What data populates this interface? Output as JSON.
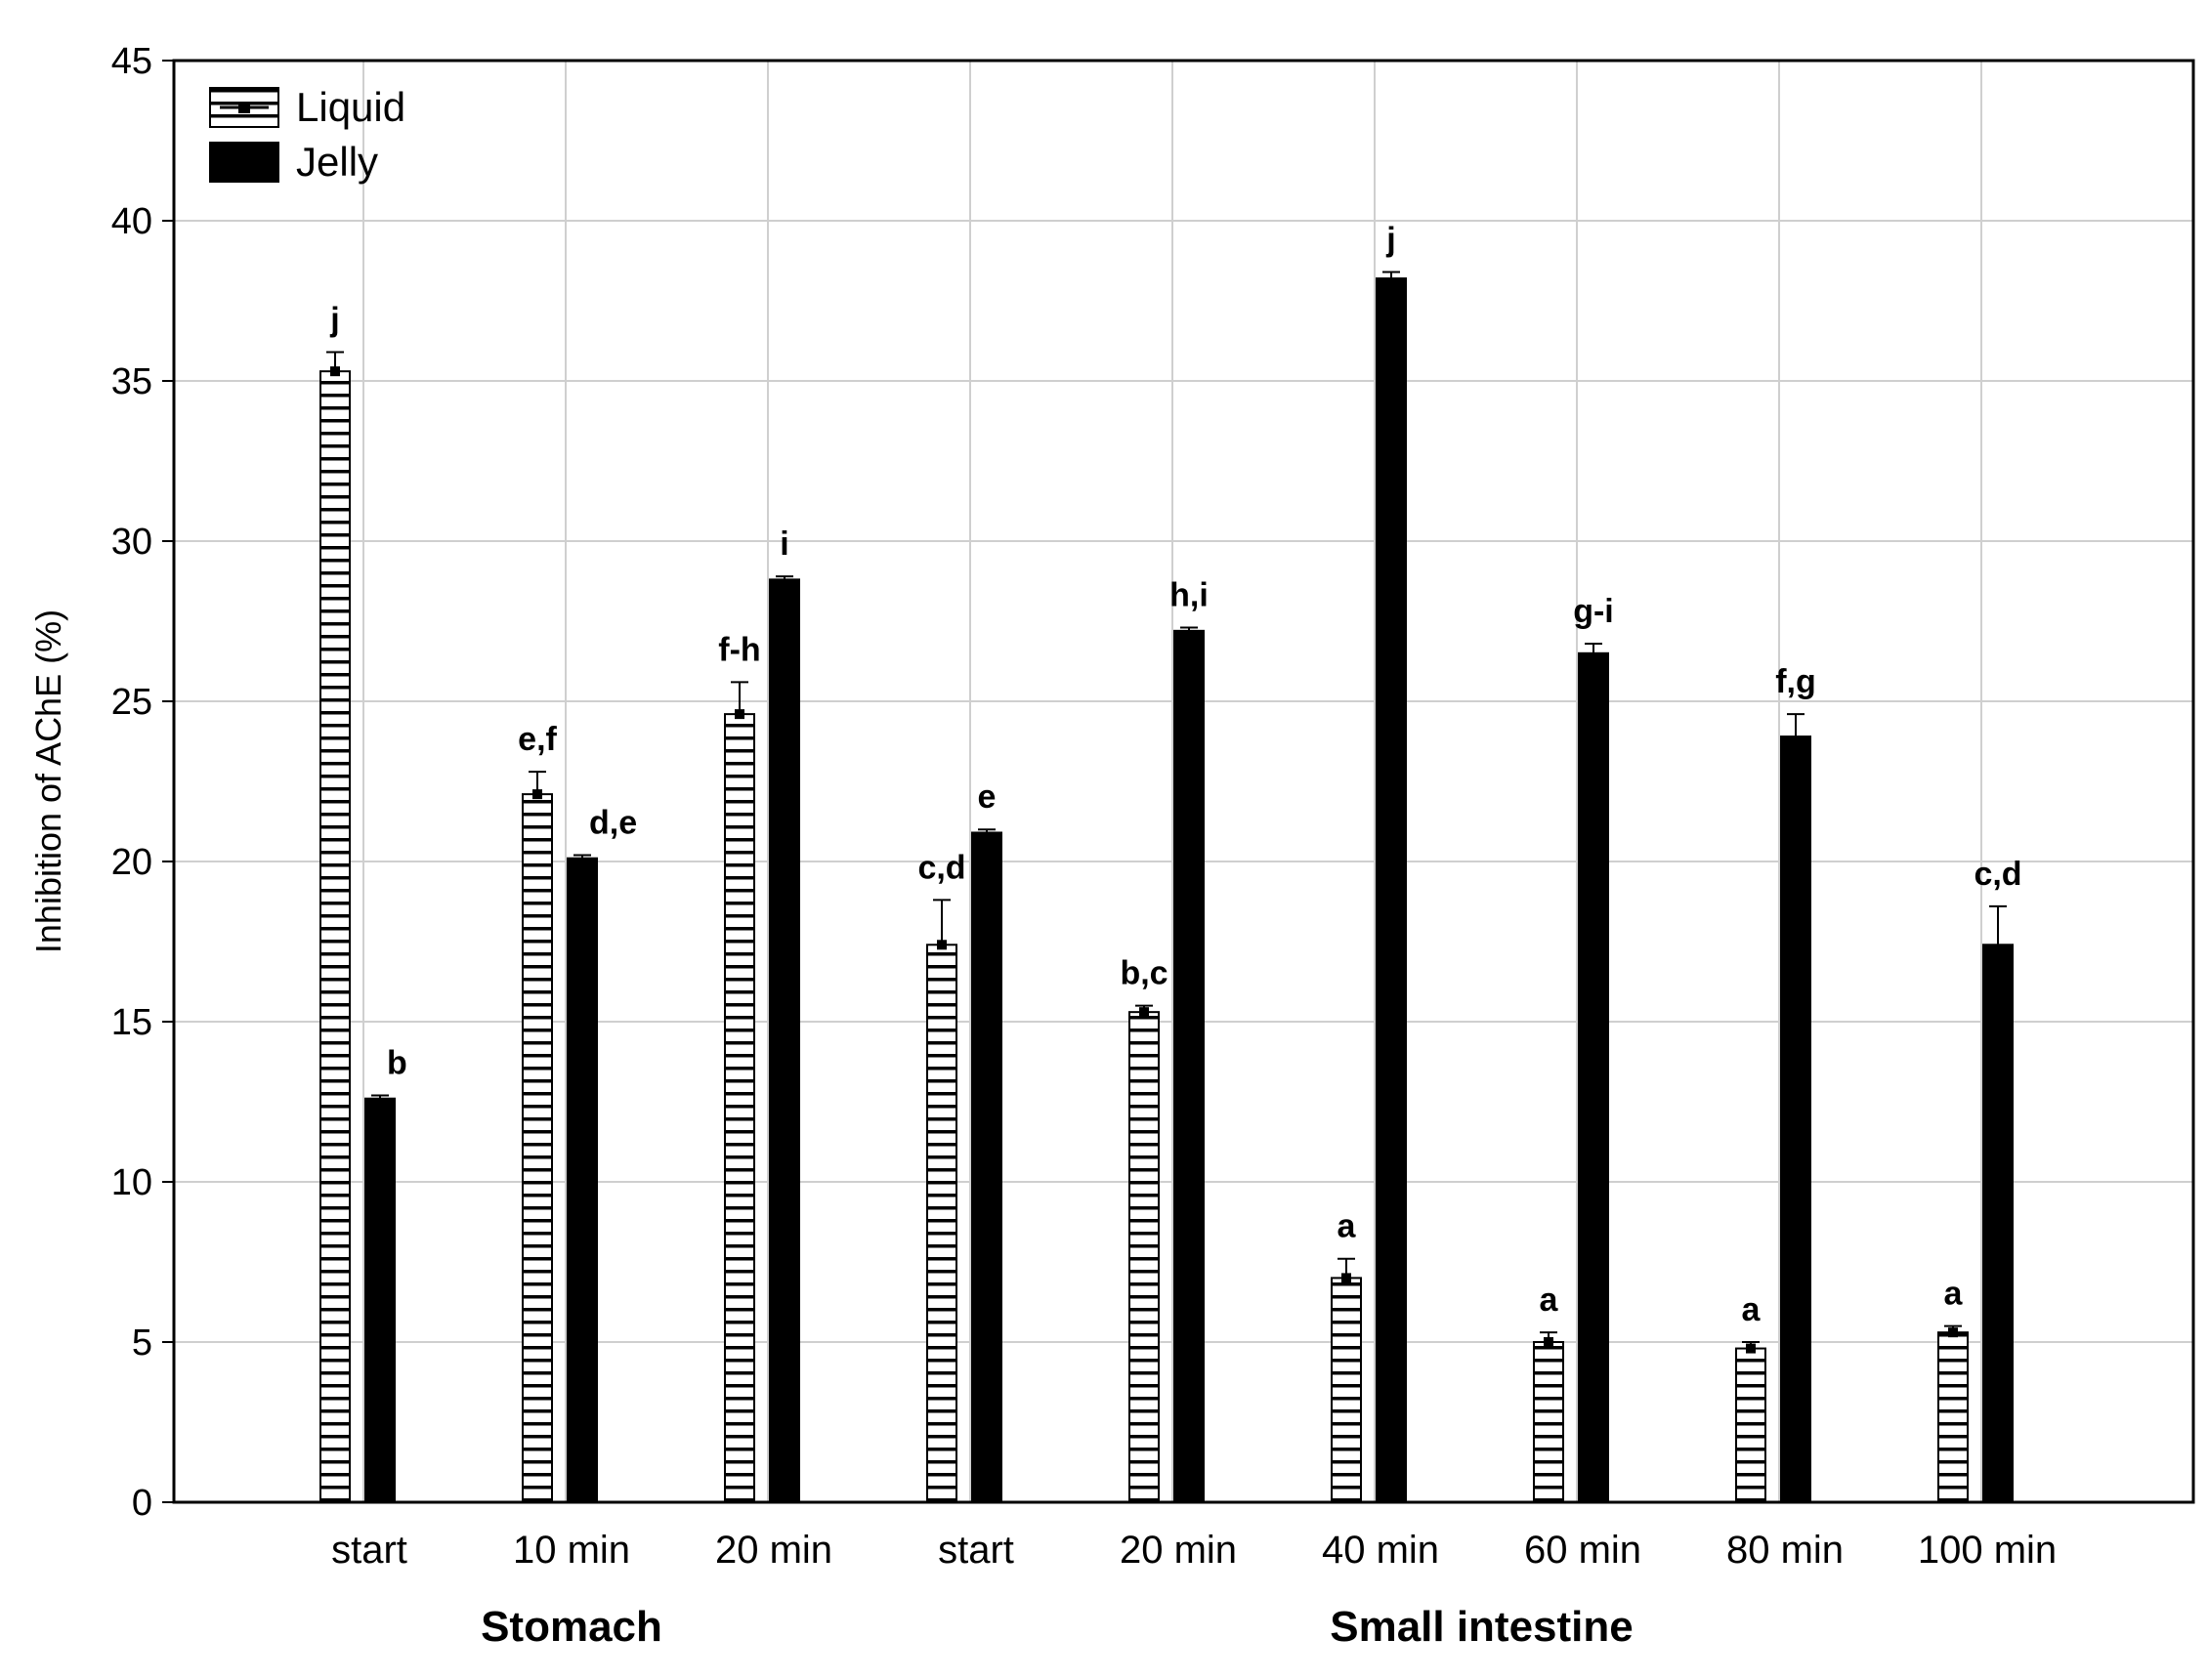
{
  "chart_data": {
    "type": "bar",
    "ylabel": "Inhibition of AChE (%)",
    "xlabel": "",
    "ylim": [
      0,
      45
    ],
    "yticks": [
      0,
      5,
      10,
      15,
      20,
      25,
      30,
      35,
      40,
      45
    ],
    "grid": true,
    "legend_position": "top-left",
    "categories": [
      "start",
      "10 min",
      "20 min",
      "start",
      "20 min",
      "40 min",
      "60 min",
      "80 min",
      "100 min"
    ],
    "groups": [
      {
        "label": "Stomach",
        "categories": [
          0,
          1,
          2
        ]
      },
      {
        "label": "Small intestine",
        "categories": [
          3,
          4,
          5,
          6,
          7,
          8
        ]
      }
    ],
    "series": [
      {
        "name": "Liquid",
        "pattern": "horizontal-stripes",
        "color": "#ffffff",
        "values": [
          35.3,
          22.1,
          24.6,
          17.4,
          15.3,
          7.0,
          5.0,
          4.8,
          5.3
        ],
        "errors": [
          0.6,
          0.7,
          1.0,
          1.4,
          0.2,
          0.6,
          0.3,
          0.2,
          0.2
        ],
        "labels": [
          "j",
          "e,f",
          "f-h",
          "c,d",
          "b,c",
          "a",
          "a",
          "a",
          "a"
        ]
      },
      {
        "name": "Jelly",
        "pattern": "solid",
        "color": "#000000",
        "values": [
          12.6,
          20.1,
          28.8,
          20.9,
          27.2,
          38.2,
          26.5,
          23.9,
          17.4
        ],
        "errors": [
          0.1,
          0.1,
          0.1,
          0.1,
          0.1,
          0.2,
          0.3,
          0.7,
          1.2
        ],
        "labels": [
          "b",
          "d,e",
          "i",
          "e",
          "h,i",
          "j",
          "g-i",
          "f,g",
          "c,d"
        ]
      }
    ]
  }
}
